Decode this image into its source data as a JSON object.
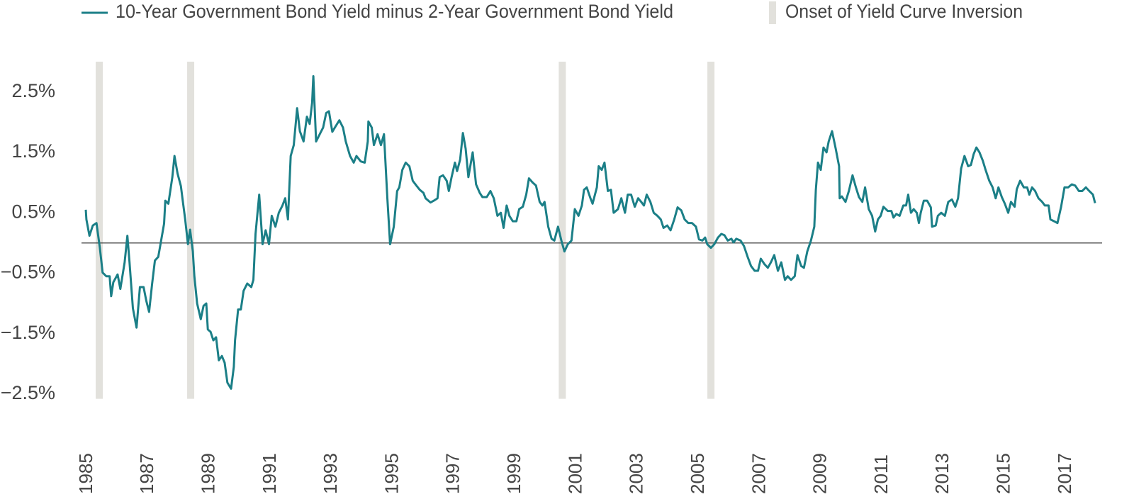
{
  "chart_data": {
    "type": "line",
    "xlim": [
      1984.86,
      2018.23
    ],
    "ylim": [
      -3,
      3
    ],
    "xticks": [
      1985,
      1987,
      1989,
      1991,
      1993,
      1995,
      1997,
      1999,
      2001,
      2003,
      2005,
      2007,
      2009,
      2011,
      2013,
      2015,
      2017
    ],
    "yticks": [
      {
        "value": 2.5,
        "label": "2.5%"
      },
      {
        "value": 1.5,
        "label": "1.5%"
      },
      {
        "value": 0.5,
        "label": "0.5%"
      },
      {
        "value": -0.5,
        "label": "−0.5%"
      },
      {
        "value": -1.5,
        "label": "−1.5%"
      },
      {
        "value": -2.5,
        "label": "−2.5%"
      }
    ],
    "grid": false,
    "bands": {
      "name": "Onset of Yield Curve Inversion",
      "color": "#e2e1dc",
      "x": [
        1985.44,
        1988.43,
        2000.58,
        2005.44
      ]
    },
    "series": [
      {
        "name": "10-Year Government Bond Yield minus 2-Year Government Bond Yield",
        "color": "#1b7f87",
        "x": [
          1985.0,
          1985.02,
          1985.12,
          1985.23,
          1985.35,
          1985.46,
          1985.55,
          1985.67,
          1985.78,
          1985.83,
          1985.9,
          1986.04,
          1986.13,
          1986.27,
          1986.36,
          1986.43,
          1986.54,
          1986.66,
          1986.77,
          1986.89,
          1986.98,
          1987.07,
          1987.17,
          1987.26,
          1987.37,
          1987.56,
          1987.6,
          1987.7,
          1987.83,
          1987.9,
          1988.0,
          1988.11,
          1988.16,
          1988.25,
          1988.34,
          1988.41,
          1988.5,
          1988.55,
          1988.64,
          1988.76,
          1988.85,
          1988.94,
          1988.99,
          1989.08,
          1989.17,
          1989.26,
          1989.35,
          1989.45,
          1989.54,
          1989.63,
          1989.75,
          1989.84,
          1989.88,
          1989.98,
          1990.07,
          1990.16,
          1990.28,
          1990.41,
          1990.48,
          1990.55,
          1990.67,
          1990.78,
          1990.88,
          1990.99,
          1991.08,
          1991.2,
          1991.31,
          1991.43,
          1991.52,
          1991.61,
          1991.7,
          1991.8,
          1991.91,
          1992.0,
          1992.12,
          1992.23,
          1992.32,
          1992.4,
          1992.44,
          1992.53,
          1992.67,
          1992.76,
          1992.86,
          1992.95,
          1993.06,
          1993.18,
          1993.29,
          1993.41,
          1993.5,
          1993.64,
          1993.76,
          1993.85,
          1993.99,
          1994.12,
          1994.22,
          1994.24,
          1994.35,
          1994.42,
          1994.54,
          1994.65,
          1994.75,
          1994.86,
          1994.95,
          1995.07,
          1995.18,
          1995.25,
          1995.35,
          1995.46,
          1995.58,
          1995.69,
          1995.81,
          1995.92,
          1996.04,
          1996.11,
          1996.27,
          1996.38,
          1996.5,
          1996.57,
          1996.68,
          1996.8,
          1996.87,
          1996.96,
          1997.07,
          1997.14,
          1997.24,
          1997.33,
          1997.42,
          1997.51,
          1997.65,
          1997.76,
          1997.88,
          1997.97,
          1998.11,
          1998.23,
          1998.34,
          1998.46,
          1998.57,
          1998.66,
          1998.76,
          1998.85,
          1998.96,
          1999.08,
          1999.17,
          1999.29,
          1999.4,
          1999.49,
          1999.61,
          1999.72,
          1999.84,
          1999.93,
          2000.0,
          2000.12,
          2000.23,
          2000.32,
          2000.44,
          2000.55,
          2000.65,
          2000.76,
          2000.88,
          2000.99,
          2001.11,
          2001.22,
          2001.29,
          2001.38,
          2001.5,
          2001.57,
          2001.71,
          2001.77,
          2001.87,
          2001.96,
          2002.07,
          2002.17,
          2002.26,
          2002.4,
          2002.51,
          2002.63,
          2002.72,
          2002.83,
          2002.95,
          2003.06,
          2003.16,
          2003.25,
          2003.34,
          2003.46,
          2003.57,
          2003.69,
          2003.8,
          2003.89,
          2004.01,
          2004.12,
          2004.24,
          2004.35,
          2004.47,
          2004.58,
          2004.7,
          2004.82,
          2004.95,
          2005.05,
          2005.16,
          2005.25,
          2005.32,
          2005.44,
          2005.55,
          2005.67,
          2005.78,
          2005.88,
          2005.99,
          2006.11,
          2006.18,
          2006.27,
          2006.41,
          2006.52,
          2006.64,
          2006.75,
          2006.87,
          2006.98,
          2007.07,
          2007.19,
          2007.3,
          2007.4,
          2007.51,
          2007.63,
          2007.74,
          2007.86,
          2007.95,
          2008.06,
          2008.18,
          2008.27,
          2008.39,
          2008.48,
          2008.59,
          2008.71,
          2008.82,
          2008.87,
          2008.94,
          2009.03,
          2009.12,
          2009.22,
          2009.29,
          2009.4,
          2009.52,
          2009.63,
          2009.65,
          2009.72,
          2009.84,
          2009.95,
          2010.07,
          2010.18,
          2010.28,
          2010.39,
          2010.48,
          2010.6,
          2010.71,
          2010.81,
          2010.9,
          2010.99,
          2011.08,
          2011.22,
          2011.34,
          2011.41,
          2011.5,
          2011.61,
          2011.73,
          2011.82,
          2011.89,
          2011.98,
          2012.07,
          2012.17,
          2012.24,
          2012.3,
          2012.4,
          2012.51,
          2012.63,
          2012.67,
          2012.79,
          2012.86,
          2012.97,
          2013.09,
          2013.2,
          2013.32,
          2013.43,
          2013.52,
          2013.62,
          2013.73,
          2013.85,
          2013.94,
          2014.03,
          2014.12,
          2014.22,
          2014.33,
          2014.42,
          2014.54,
          2014.65,
          2014.75,
          2014.84,
          2014.95,
          2015.05,
          2015.16,
          2015.25,
          2015.37,
          2015.44,
          2015.55,
          2015.67,
          2015.78,
          2015.85,
          2015.94,
          2016.04,
          2016.15,
          2016.27,
          2016.36,
          2016.48,
          2016.54,
          2016.66,
          2016.77,
          2016.89,
          2017.0,
          2017.12,
          2017.24,
          2017.35,
          2017.47,
          2017.58,
          2017.7,
          2017.81,
          2017.93,
          2018.0
        ],
        "values": [
          0.55,
          0.39,
          0.12,
          0.29,
          0.33,
          -0.08,
          -0.49,
          -0.55,
          -0.55,
          -0.88,
          -0.65,
          -0.52,
          -0.76,
          -0.32,
          0.12,
          -0.32,
          -1.08,
          -1.4,
          -0.73,
          -0.73,
          -0.96,
          -1.14,
          -0.67,
          -0.29,
          -0.23,
          0.32,
          0.7,
          0.65,
          1.09,
          1.44,
          1.15,
          0.94,
          0.74,
          0.39,
          -0.02,
          0.22,
          -0.14,
          -0.55,
          -1.0,
          -1.26,
          -1.04,
          -1.0,
          -1.43,
          -1.47,
          -1.61,
          -1.56,
          -1.94,
          -1.87,
          -1.98,
          -2.31,
          -2.41,
          -2.05,
          -1.61,
          -1.1,
          -1.1,
          -0.79,
          -0.67,
          -0.73,
          -0.61,
          0.15,
          0.8,
          -0.02,
          0.21,
          -0.02,
          0.45,
          0.27,
          0.5,
          0.62,
          0.74,
          0.39,
          1.44,
          1.62,
          2.23,
          1.85,
          1.68,
          2.09,
          1.97,
          2.32,
          2.76,
          1.68,
          1.82,
          1.91,
          2.15,
          2.18,
          1.84,
          1.94,
          2.03,
          1.91,
          1.68,
          1.44,
          1.33,
          1.44,
          1.35,
          1.33,
          1.68,
          2.01,
          1.91,
          1.62,
          1.8,
          1.62,
          1.8,
          0.74,
          -0.02,
          0.27,
          0.86,
          0.92,
          1.21,
          1.33,
          1.27,
          1.03,
          0.95,
          0.88,
          0.83,
          0.74,
          0.67,
          0.7,
          0.74,
          1.09,
          1.12,
          1.03,
          0.86,
          1.09,
          1.33,
          1.19,
          1.38,
          1.82,
          1.56,
          1.09,
          1.5,
          0.97,
          0.83,
          0.76,
          0.76,
          0.86,
          0.74,
          0.45,
          0.5,
          0.25,
          0.62,
          0.45,
          0.36,
          0.36,
          0.56,
          0.6,
          0.8,
          1.07,
          1.0,
          0.95,
          0.68,
          0.62,
          0.68,
          0.27,
          0.07,
          0.04,
          0.27,
          0.04,
          -0.14,
          -0.02,
          0.04,
          0.56,
          0.45,
          0.62,
          0.88,
          0.92,
          0.74,
          0.65,
          0.92,
          1.27,
          1.21,
          1.33,
          0.86,
          0.88,
          0.5,
          0.56,
          0.74,
          0.5,
          0.8,
          0.8,
          0.6,
          0.74,
          0.68,
          0.62,
          0.8,
          0.68,
          0.5,
          0.45,
          0.39,
          0.25,
          0.29,
          0.21,
          0.39,
          0.59,
          0.54,
          0.39,
          0.33,
          0.33,
          0.27,
          0.06,
          0.04,
          0.09,
          -0.02,
          -0.08,
          -0.02,
          0.09,
          0.15,
          0.13,
          0.04,
          0.07,
          0.01,
          0.07,
          0.04,
          -0.05,
          -0.23,
          -0.38,
          -0.46,
          -0.46,
          -0.26,
          -0.35,
          -0.41,
          -0.32,
          -0.2,
          -0.46,
          -0.32,
          -0.61,
          -0.55,
          -0.61,
          -0.55,
          -0.2,
          -0.38,
          -0.41,
          -0.14,
          0.04,
          0.27,
          0.88,
          1.33,
          1.21,
          1.58,
          1.5,
          1.68,
          1.85,
          1.56,
          1.27,
          0.74,
          0.77,
          0.68,
          0.86,
          1.12,
          0.92,
          0.76,
          0.68,
          0.92,
          0.56,
          0.45,
          0.19,
          0.39,
          0.45,
          0.6,
          0.53,
          0.53,
          0.42,
          0.48,
          0.45,
          0.62,
          0.62,
          0.8,
          0.5,
          0.56,
          0.5,
          0.33,
          0.5,
          0.7,
          0.7,
          0.59,
          0.27,
          0.29,
          0.45,
          0.5,
          0.45,
          0.68,
          0.72,
          0.6,
          0.74,
          1.23,
          1.44,
          1.27,
          1.29,
          1.47,
          1.58,
          1.5,
          1.36,
          1.21,
          1.03,
          0.92,
          0.74,
          0.92,
          0.76,
          0.65,
          0.5,
          0.68,
          0.6,
          0.89,
          1.03,
          0.92,
          0.92,
          0.8,
          0.92,
          0.86,
          0.74,
          0.68,
          0.62,
          0.62,
          0.39,
          0.36,
          0.33,
          0.6,
          0.92,
          0.92,
          0.97,
          0.95,
          0.86,
          0.86,
          0.92,
          0.86,
          0.8,
          0.66
        ]
      }
    ]
  }
}
